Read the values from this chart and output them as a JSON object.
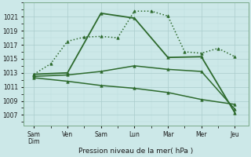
{
  "xlabel": "Pression niveau de la mer( hPa )",
  "bg_color": "#cce8e8",
  "grid_major_color": "#aacccc",
  "grid_minor_color": "#bbdddd",
  "line_color": "#2d6a2d",
  "ylim": [
    1005.5,
    1023.0
  ],
  "yticks": [
    1007,
    1009,
    1011,
    1013,
    1015,
    1017,
    1019,
    1021
  ],
  "x_labels": [
    "Sam\nDim",
    "Ven",
    "Sam",
    "Lun",
    "Mar",
    "Mer",
    "Jeu"
  ],
  "x_positions": [
    0,
    1,
    2,
    3,
    4,
    5,
    6
  ],
  "series0_x": [
    0,
    0.5,
    1.0,
    1.5,
    2.0,
    2.5,
    3.0,
    3.5,
    4.0,
    4.5,
    5.0,
    5.5,
    6.0
  ],
  "series0_y": [
    1012.8,
    1014.3,
    1017.5,
    1018.1,
    1018.2,
    1018.0,
    1021.8,
    1021.8,
    1021.1,
    1016.0,
    1015.8,
    1016.5,
    1015.3
  ],
  "series0_style": ":",
  "series1_x": [
    0,
    1,
    2,
    3,
    4,
    5,
    6
  ],
  "series1_y": [
    1012.8,
    1013.0,
    1021.5,
    1020.8,
    1015.2,
    1015.3,
    1007.3
  ],
  "series1_style": "-",
  "series2_x": [
    0,
    1,
    2,
    3,
    4,
    5,
    6
  ],
  "series2_y": [
    1012.5,
    1012.7,
    1013.2,
    1014.0,
    1013.5,
    1013.2,
    1007.8
  ],
  "series2_style": "-",
  "series3_x": [
    0,
    1,
    2,
    3,
    4,
    5,
    6
  ],
  "series3_y": [
    1012.3,
    1011.8,
    1011.2,
    1010.8,
    1010.2,
    1009.2,
    1008.5
  ],
  "series3_style": "-"
}
